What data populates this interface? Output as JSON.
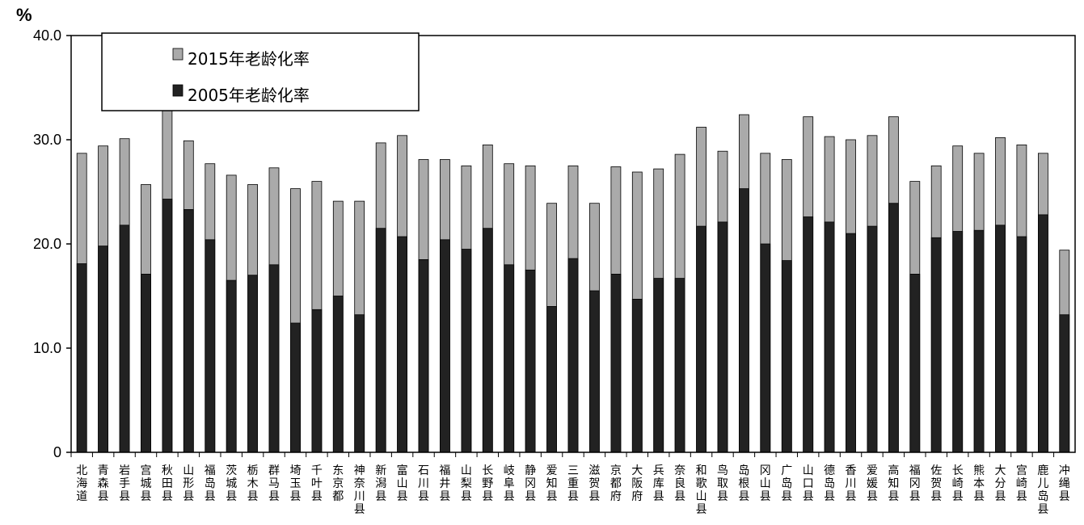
{
  "chart_data": {
    "type": "bar",
    "title": "",
    "unit_label": "%",
    "xlabel": "",
    "ylabel": "",
    "ylim": [
      0,
      40
    ],
    "yticks": [
      0,
      10,
      20,
      30,
      40
    ],
    "ytick_labels": [
      "0",
      "10.0",
      "20.0",
      "30.0",
      "40.0"
    ],
    "grid": false,
    "legend_position": "top-left",
    "categories": [
      "北海道",
      "青森县",
      "岩手县",
      "宫城县",
      "秋田县",
      "山形县",
      "福岛县",
      "茨城县",
      "栃木县",
      "群马县",
      "埼玉县",
      "千叶县",
      "东京都",
      "神奈川县",
      "新潟县",
      "富山县",
      "石川县",
      "福井县",
      "山梨县",
      "长野县",
      "岐阜县",
      "静冈县",
      "爱知县",
      "三重县",
      "滋贺县",
      "京都府",
      "大阪府",
      "兵库县",
      "奈良县",
      "和歌山县",
      "鸟取县",
      "岛根县",
      "冈山县",
      "广岛县",
      "山口县",
      "德岛县",
      "香川县",
      "爱媛县",
      "高知县",
      "福冈县",
      "佐贺县",
      "长崎县",
      "熊本县",
      "大分县",
      "宫崎县",
      "鹿儿岛县",
      "冲绳县"
    ],
    "series": [
      {
        "name": "2015年老龄化率",
        "color": "#aaaaaa",
        "values": [
          28.7,
          29.4,
          30.1,
          25.7,
          33.8,
          29.9,
          27.7,
          26.6,
          25.7,
          27.3,
          25.3,
          26.0,
          24.1,
          24.1,
          29.7,
          30.4,
          28.1,
          28.1,
          27.5,
          29.5,
          27.7,
          27.5,
          23.9,
          27.5,
          23.9,
          27.4,
          26.9,
          27.2,
          28.6,
          31.2,
          28.9,
          32.4,
          28.7,
          28.1,
          32.2,
          30.3,
          30.0,
          30.4,
          32.2,
          26.0,
          27.5,
          29.4,
          28.7,
          30.2,
          29.5,
          28.7,
          19.4
        ]
      },
      {
        "name": "2005年老龄化率",
        "color": "#222222",
        "values": [
          18.1,
          19.8,
          21.8,
          17.1,
          24.3,
          23.3,
          20.4,
          16.5,
          17.0,
          18.0,
          12.4,
          13.7,
          15.0,
          13.2,
          21.5,
          20.7,
          18.5,
          20.4,
          19.5,
          21.5,
          18.0,
          17.5,
          14.0,
          18.6,
          15.5,
          17.1,
          14.7,
          16.7,
          16.7,
          21.7,
          22.1,
          25.3,
          20.0,
          18.4,
          22.6,
          22.1,
          21.0,
          21.7,
          23.9,
          17.1,
          20.6,
          21.2,
          21.3,
          21.8,
          20.7,
          22.8,
          13.2
        ]
      }
    ]
  }
}
